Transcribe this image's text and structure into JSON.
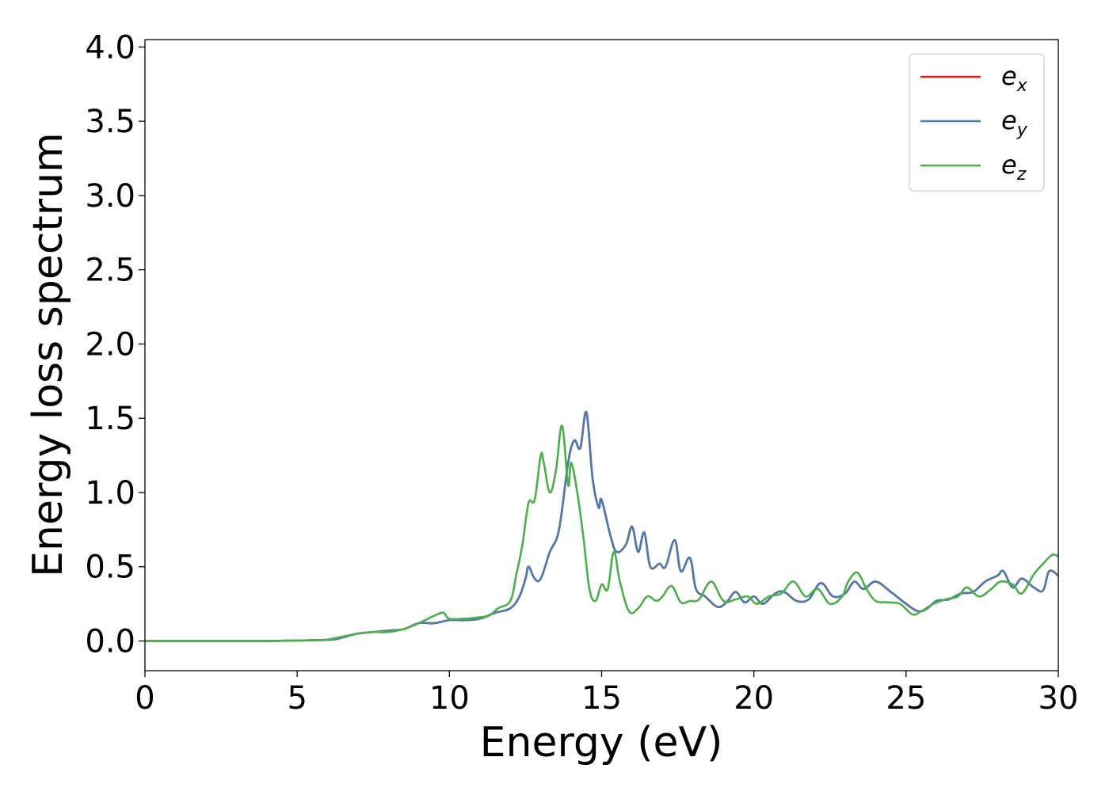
{
  "chart_data": {
    "type": "line",
    "title": "",
    "xlabel": "Energy (eV)",
    "ylabel": "Energy loss spectrum",
    "xlim": [
      0,
      30
    ],
    "ylim": [
      -0.2,
      4.05
    ],
    "xticks": [
      0,
      5,
      10,
      15,
      20,
      25,
      30
    ],
    "xtick_labels": [
      "0",
      "5",
      "10",
      "15",
      "20",
      "25",
      "30"
    ],
    "yticks": [
      0.0,
      0.5,
      1.0,
      1.5,
      2.0,
      2.5,
      3.0,
      3.5,
      4.0
    ],
    "ytick_labels": [
      "0.0",
      "0.5",
      "1.0",
      "1.5",
      "2.0",
      "2.5",
      "3.0",
      "3.5",
      "4.0"
    ],
    "grid": false,
    "legend_position": "top-right",
    "series": [
      {
        "name": "e_x",
        "legend_base": "e",
        "legend_sub": "x",
        "color": "#e41a1c",
        "x": [
          0,
          2,
          4,
          5.5,
          6.2,
          6.6,
          7.0,
          7.5,
          8.0,
          8.5,
          9.0,
          9.5,
          10.0,
          10.5,
          11.0,
          11.5,
          12.0,
          12.3,
          12.5,
          12.6,
          12.8,
          13.0,
          13.3,
          13.6,
          13.9,
          14.1,
          14.3,
          14.5,
          14.7,
          14.9,
          15.0,
          15.3,
          15.5,
          15.8,
          16.0,
          16.2,
          16.4,
          16.6,
          16.9,
          17.1,
          17.4,
          17.6,
          17.9,
          18.1,
          18.4,
          18.8,
          19.1,
          19.4,
          19.7,
          20.0,
          20.3,
          20.7,
          21.0,
          21.4,
          21.8,
          22.2,
          22.6,
          23.0,
          23.3,
          23.6,
          24.0,
          24.5,
          25.0,
          25.4,
          25.7,
          26.0,
          26.4,
          26.8,
          27.2,
          27.6,
          28.0,
          28.2,
          28.5,
          28.8,
          29.2,
          29.5,
          29.7,
          30.0
        ],
        "values": [
          0.0,
          0.0,
          0.0,
          0.005,
          0.01,
          0.03,
          0.05,
          0.06,
          0.07,
          0.08,
          0.12,
          0.12,
          0.14,
          0.14,
          0.15,
          0.19,
          0.22,
          0.3,
          0.42,
          0.5,
          0.42,
          0.42,
          0.6,
          0.75,
          1.2,
          1.35,
          1.3,
          1.54,
          1.1,
          0.9,
          0.95,
          0.7,
          0.6,
          0.65,
          0.77,
          0.6,
          0.73,
          0.5,
          0.52,
          0.5,
          0.68,
          0.47,
          0.56,
          0.35,
          0.3,
          0.23,
          0.26,
          0.33,
          0.26,
          0.3,
          0.25,
          0.32,
          0.33,
          0.27,
          0.28,
          0.39,
          0.3,
          0.32,
          0.4,
          0.35,
          0.4,
          0.33,
          0.25,
          0.2,
          0.22,
          0.27,
          0.28,
          0.32,
          0.33,
          0.4,
          0.44,
          0.47,
          0.36,
          0.42,
          0.36,
          0.34,
          0.47,
          0.44
        ]
      },
      {
        "name": "e_y",
        "legend_base": "e",
        "legend_sub": "y",
        "color": "#4a7ab0",
        "x": [
          0,
          2,
          4,
          5.5,
          6.2,
          6.6,
          7.0,
          7.5,
          8.0,
          8.5,
          9.0,
          9.5,
          10.0,
          10.5,
          11.0,
          11.5,
          12.0,
          12.3,
          12.5,
          12.6,
          12.8,
          13.0,
          13.3,
          13.6,
          13.9,
          14.1,
          14.3,
          14.5,
          14.7,
          14.9,
          15.0,
          15.3,
          15.5,
          15.8,
          16.0,
          16.2,
          16.4,
          16.6,
          16.9,
          17.1,
          17.4,
          17.6,
          17.9,
          18.1,
          18.4,
          18.8,
          19.1,
          19.4,
          19.7,
          20.0,
          20.3,
          20.7,
          21.0,
          21.4,
          21.8,
          22.2,
          22.6,
          23.0,
          23.3,
          23.6,
          24.0,
          24.5,
          25.0,
          25.4,
          25.7,
          26.0,
          26.4,
          26.8,
          27.2,
          27.6,
          28.0,
          28.2,
          28.5,
          28.8,
          29.2,
          29.5,
          29.7,
          30.0
        ],
        "values": [
          0.0,
          0.0,
          0.0,
          0.005,
          0.01,
          0.03,
          0.05,
          0.06,
          0.07,
          0.08,
          0.12,
          0.12,
          0.14,
          0.14,
          0.15,
          0.19,
          0.22,
          0.3,
          0.42,
          0.5,
          0.42,
          0.42,
          0.6,
          0.75,
          1.2,
          1.35,
          1.3,
          1.54,
          1.1,
          0.9,
          0.95,
          0.7,
          0.6,
          0.65,
          0.77,
          0.6,
          0.73,
          0.5,
          0.52,
          0.5,
          0.68,
          0.47,
          0.56,
          0.35,
          0.3,
          0.23,
          0.26,
          0.33,
          0.26,
          0.3,
          0.25,
          0.32,
          0.33,
          0.27,
          0.28,
          0.39,
          0.3,
          0.32,
          0.4,
          0.35,
          0.4,
          0.33,
          0.25,
          0.2,
          0.22,
          0.27,
          0.28,
          0.32,
          0.33,
          0.4,
          0.44,
          0.47,
          0.36,
          0.42,
          0.36,
          0.34,
          0.47,
          0.44
        ]
      },
      {
        "name": "e_z",
        "legend_base": "e",
        "legend_sub": "z",
        "color": "#4daf4a",
        "x": [
          0,
          2,
          4,
          5.5,
          6.0,
          6.5,
          7.0,
          7.5,
          8.0,
          8.5,
          9.0,
          9.5,
          9.8,
          10.0,
          10.5,
          11.0,
          11.3,
          11.6,
          12.0,
          12.2,
          12.4,
          12.6,
          12.8,
          13.0,
          13.1,
          13.3,
          13.5,
          13.7,
          13.9,
          14.0,
          14.2,
          14.4,
          14.6,
          14.8,
          15.0,
          15.2,
          15.4,
          15.6,
          15.9,
          16.2,
          16.5,
          16.8,
          17.0,
          17.3,
          17.6,
          17.9,
          18.2,
          18.6,
          19.0,
          19.4,
          19.8,
          20.1,
          20.5,
          20.9,
          21.3,
          21.7,
          22.1,
          22.5,
          22.9,
          23.1,
          23.4,
          23.7,
          24.0,
          24.4,
          24.8,
          25.2,
          25.5,
          25.9,
          26.3,
          26.7,
          27.0,
          27.4,
          27.8,
          28.1,
          28.5,
          28.8,
          29.2,
          29.5,
          29.8,
          30.0
        ],
        "values": [
          0.0,
          0.0,
          0.0,
          0.005,
          0.01,
          0.03,
          0.05,
          0.06,
          0.06,
          0.08,
          0.12,
          0.17,
          0.19,
          0.15,
          0.15,
          0.16,
          0.17,
          0.22,
          0.27,
          0.45,
          0.65,
          0.93,
          0.95,
          1.25,
          1.2,
          1.0,
          1.15,
          1.45,
          1.05,
          1.2,
          1.0,
          0.7,
          0.35,
          0.27,
          0.38,
          0.35,
          0.6,
          0.4,
          0.2,
          0.22,
          0.3,
          0.27,
          0.3,
          0.37,
          0.26,
          0.27,
          0.28,
          0.4,
          0.27,
          0.28,
          0.3,
          0.25,
          0.3,
          0.32,
          0.4,
          0.3,
          0.35,
          0.25,
          0.3,
          0.4,
          0.46,
          0.35,
          0.27,
          0.26,
          0.25,
          0.18,
          0.2,
          0.25,
          0.28,
          0.3,
          0.36,
          0.3,
          0.35,
          0.4,
          0.38,
          0.32,
          0.45,
          0.52,
          0.58,
          0.57
        ]
      }
    ]
  }
}
